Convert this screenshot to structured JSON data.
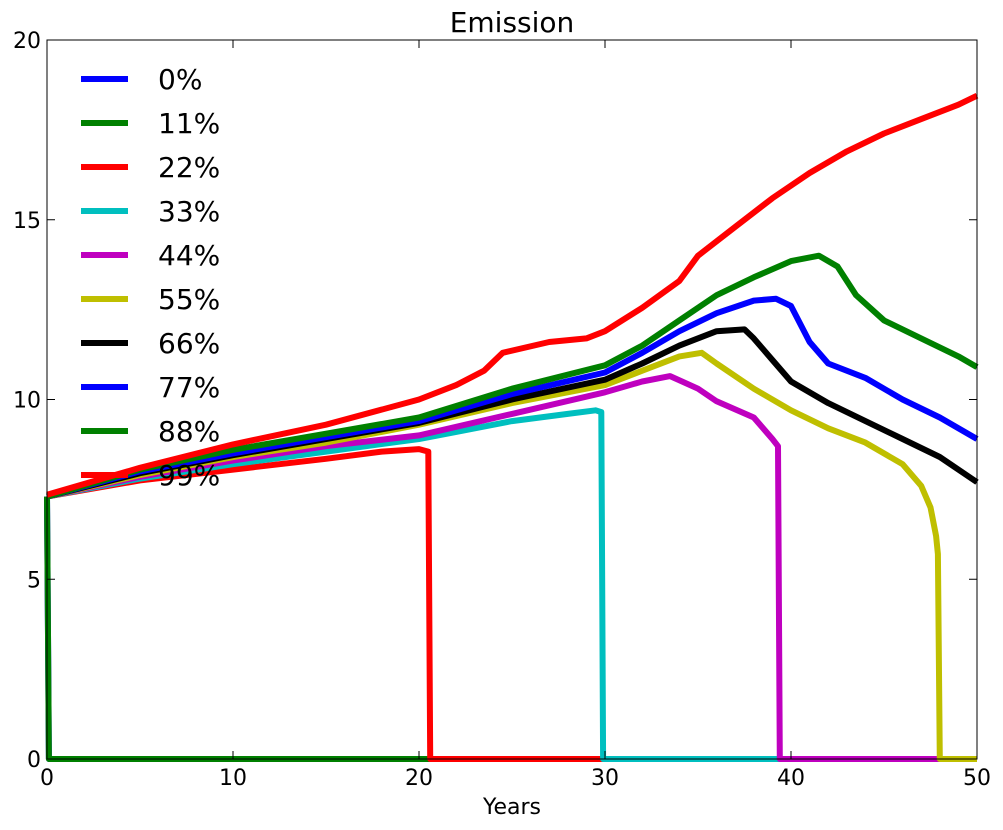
{
  "chart_data": {
    "type": "line",
    "title": "Emission",
    "xlabel": "Years",
    "ylabel": "",
    "xlim": [
      0,
      50
    ],
    "ylim": [
      0,
      20
    ],
    "xticks": [
      0,
      10,
      20,
      30,
      40,
      50
    ],
    "yticks": [
      0,
      5,
      10,
      15,
      20
    ],
    "legend_position": "upper-left",
    "grid": false,
    "series": [
      {
        "name": "0%",
        "color": "#0000ff",
        "points": [
          [
            0,
            7.3
          ],
          [
            0.1,
            0
          ],
          [
            50,
            0
          ]
        ]
      },
      {
        "name": "11%",
        "color": "#008000",
        "points": [
          [
            0,
            7.3
          ],
          [
            0.1,
            0
          ],
          [
            50,
            0
          ]
        ]
      },
      {
        "name": "22%",
        "color": "#ff0000",
        "points": [
          [
            0,
            7.3
          ],
          [
            5,
            7.75
          ],
          [
            10,
            8.05
          ],
          [
            15,
            8.35
          ],
          [
            18,
            8.55
          ],
          [
            20,
            8.62
          ],
          [
            20.5,
            8.55
          ],
          [
            20.6,
            0
          ],
          [
            50,
            0
          ]
        ]
      },
      {
        "name": "33%",
        "color": "#00bfbf",
        "points": [
          [
            0,
            7.3
          ],
          [
            5,
            7.8
          ],
          [
            10,
            8.2
          ],
          [
            15,
            8.55
          ],
          [
            20,
            8.9
          ],
          [
            22,
            9.1
          ],
          [
            25,
            9.4
          ],
          [
            28,
            9.6
          ],
          [
            29.5,
            9.7
          ],
          [
            29.8,
            9.65
          ],
          [
            29.9,
            0
          ],
          [
            50,
            0
          ]
        ]
      },
      {
        "name": "44%",
        "color": "#bf00bf",
        "points": [
          [
            0,
            7.3
          ],
          [
            5,
            7.85
          ],
          [
            10,
            8.3
          ],
          [
            15,
            8.7
          ],
          [
            20,
            9.0
          ],
          [
            25,
            9.6
          ],
          [
            30,
            10.2
          ],
          [
            32,
            10.5
          ],
          [
            33.5,
            10.65
          ],
          [
            35,
            10.3
          ],
          [
            36,
            9.95
          ],
          [
            38,
            9.5
          ],
          [
            39,
            8.9
          ],
          [
            39.3,
            8.7
          ],
          [
            39.4,
            0
          ],
          [
            50,
            0
          ]
        ]
      },
      {
        "name": "55%",
        "color": "#bfbf00",
        "points": [
          [
            0,
            7.3
          ],
          [
            5,
            7.9
          ],
          [
            10,
            8.4
          ],
          [
            15,
            8.8
          ],
          [
            20,
            9.3
          ],
          [
            25,
            9.9
          ],
          [
            30,
            10.4
          ],
          [
            32,
            10.8
          ],
          [
            34,
            11.2
          ],
          [
            35.2,
            11.3
          ],
          [
            36,
            11.0
          ],
          [
            38,
            10.3
          ],
          [
            40,
            9.7
          ],
          [
            42,
            9.2
          ],
          [
            44,
            8.8
          ],
          [
            46,
            8.2
          ],
          [
            47,
            7.6
          ],
          [
            47.5,
            7.0
          ],
          [
            47.8,
            6.2
          ],
          [
            47.9,
            5.7
          ],
          [
            48.0,
            0
          ],
          [
            50,
            0
          ]
        ]
      },
      {
        "name": "66%",
        "color": "#000000",
        "points": [
          [
            0,
            7.3
          ],
          [
            5,
            7.95
          ],
          [
            10,
            8.45
          ],
          [
            15,
            8.9
          ],
          [
            20,
            9.35
          ],
          [
            25,
            10.0
          ],
          [
            30,
            10.55
          ],
          [
            32,
            11.0
          ],
          [
            34,
            11.5
          ],
          [
            36,
            11.9
          ],
          [
            37.5,
            11.95
          ],
          [
            38,
            11.7
          ],
          [
            39,
            11.1
          ],
          [
            40,
            10.5
          ],
          [
            42,
            9.9
          ],
          [
            44,
            9.4
          ],
          [
            46,
            8.9
          ],
          [
            48,
            8.4
          ],
          [
            50,
            7.7
          ]
        ]
      },
      {
        "name": "77%",
        "color": "#0000ff",
        "points": [
          [
            0,
            7.3
          ],
          [
            5,
            8.0
          ],
          [
            10,
            8.5
          ],
          [
            15,
            8.95
          ],
          [
            20,
            9.4
          ],
          [
            25,
            10.15
          ],
          [
            30,
            10.75
          ],
          [
            32,
            11.3
          ],
          [
            34,
            11.9
          ],
          [
            36,
            12.4
          ],
          [
            38,
            12.75
          ],
          [
            39.2,
            12.8
          ],
          [
            40,
            12.6
          ],
          [
            41,
            11.6
          ],
          [
            42,
            11.0
          ],
          [
            44,
            10.6
          ],
          [
            46,
            10.0
          ],
          [
            48,
            9.5
          ],
          [
            50,
            8.9
          ]
        ]
      },
      {
        "name": "88%",
        "color": "#008000",
        "points": [
          [
            0,
            7.3
          ],
          [
            5,
            8.05
          ],
          [
            10,
            8.6
          ],
          [
            15,
            9.05
          ],
          [
            20,
            9.5
          ],
          [
            25,
            10.3
          ],
          [
            30,
            10.95
          ],
          [
            32,
            11.5
          ],
          [
            34,
            12.2
          ],
          [
            36,
            12.9
          ],
          [
            38,
            13.4
          ],
          [
            40,
            13.85
          ],
          [
            41.5,
            14.0
          ],
          [
            42.5,
            13.7
          ],
          [
            43.5,
            12.9
          ],
          [
            45,
            12.2
          ],
          [
            47,
            11.7
          ],
          [
            49,
            11.2
          ],
          [
            50,
            10.9
          ]
        ]
      },
      {
        "name": "99%",
        "color": "#ff0000",
        "points": [
          [
            0,
            7.35
          ],
          [
            5,
            8.1
          ],
          [
            10,
            8.75
          ],
          [
            15,
            9.3
          ],
          [
            20,
            10.0
          ],
          [
            22,
            10.4
          ],
          [
            23.5,
            10.8
          ],
          [
            24.5,
            11.3
          ],
          [
            27,
            11.6
          ],
          [
            29,
            11.7
          ],
          [
            30,
            11.9
          ],
          [
            32,
            12.55
          ],
          [
            34,
            13.3
          ],
          [
            35,
            14.0
          ],
          [
            37,
            14.8
          ],
          [
            39,
            15.6
          ],
          [
            41,
            16.3
          ],
          [
            43,
            16.9
          ],
          [
            45,
            17.4
          ],
          [
            47,
            17.8
          ],
          [
            49,
            18.2
          ],
          [
            50,
            18.45
          ]
        ]
      }
    ]
  }
}
